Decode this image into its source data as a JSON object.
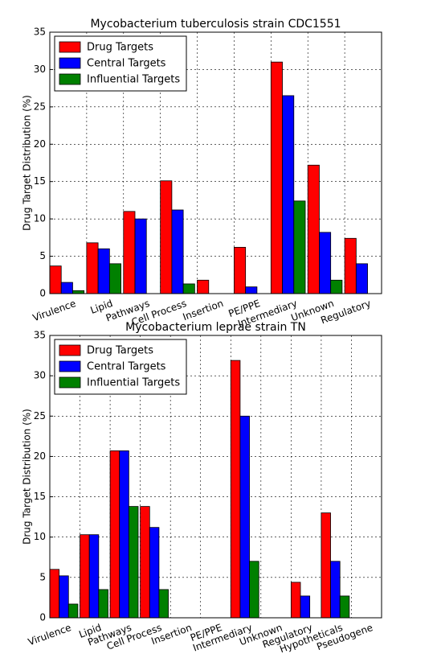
{
  "chart_data": [
    {
      "type": "bar",
      "title": "Mycobacterium tuberculosis strain CDC1551",
      "ylabel": "Drug Target Distribution (%)",
      "categories": [
        "Virulence",
        "Lipid",
        "Pathways",
        "Cell Process",
        "Insertion",
        "PE/PPE",
        "Intermediary",
        "Unknown",
        "Regulatory"
      ],
      "series": [
        {
          "name": "Drug Targets",
          "color": "#ff0000",
          "values": [
            3.7,
            6.8,
            11.0,
            15.1,
            1.8,
            6.2,
            31.0,
            17.2,
            7.4
          ]
        },
        {
          "name": "Central Targets",
          "color": "#0000ff",
          "values": [
            1.5,
            6.0,
            10.0,
            11.2,
            0,
            0.9,
            26.5,
            8.2,
            4.0
          ]
        },
        {
          "name": "Influential Targets",
          "color": "#008000",
          "values": [
            0.4,
            4.0,
            0,
            1.3,
            0,
            0,
            12.4,
            1.8,
            0
          ]
        }
      ],
      "ylim": [
        0,
        35
      ],
      "yticks": [
        0,
        5,
        10,
        15,
        20,
        25,
        30,
        35
      ],
      "grid": true,
      "legend": "upper left"
    },
    {
      "type": "bar",
      "title": "Mycobacterium leprae strain TN",
      "ylabel": "Drug Target Distribution (%)",
      "categories": [
        "Virulence",
        "Lipid",
        "Pathways",
        "Cell Process",
        "Insertion",
        "PE/PPE",
        "Intermediary",
        "Unknown",
        "Regulatory",
        "Hypotheticals",
        "Pseudogene"
      ],
      "series": [
        {
          "name": "Drug Targets",
          "color": "#ff0000",
          "values": [
            6.0,
            10.3,
            20.7,
            13.8,
            0,
            0,
            31.9,
            0,
            4.4,
            13.0,
            0
          ]
        },
        {
          "name": "Central Targets",
          "color": "#0000ff",
          "values": [
            5.2,
            10.3,
            20.7,
            11.2,
            0,
            0,
            25.0,
            0,
            2.7,
            7.0,
            0
          ]
        },
        {
          "name": "Influential Targets",
          "color": "#008000",
          "values": [
            1.7,
            3.5,
            13.8,
            3.5,
            0,
            0,
            7.0,
            0,
            0,
            2.7,
            0
          ]
        }
      ],
      "ylim": [
        0,
        35
      ],
      "yticks": [
        0,
        5,
        10,
        15,
        20,
        25,
        30,
        35
      ],
      "grid": true,
      "legend": "upper left"
    }
  ]
}
